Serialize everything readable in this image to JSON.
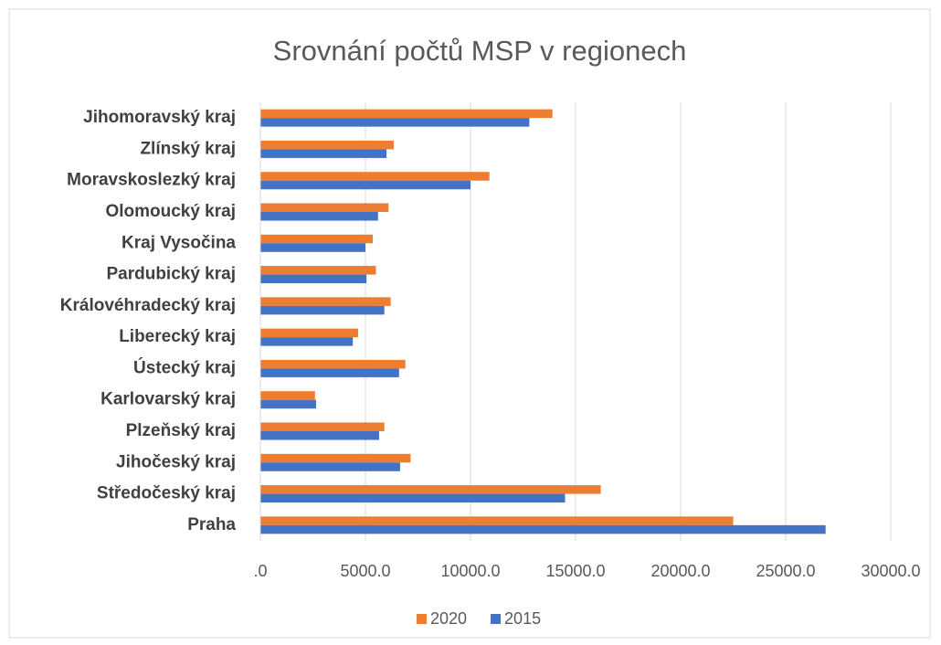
{
  "chart_data": {
    "type": "barh",
    "title": "Srovnání počtů MSP v regionech",
    "categories": [
      "Jihomoravský kraj",
      "Zlínský kraj",
      "Moravskoslezký kraj",
      "Olomoucký kraj",
      "Kraj Vysočina",
      "Pardubický kraj",
      "Královéhradecký kraj",
      "Liberecký kraj",
      "Ústecký kraj",
      "Karlovarský kraj",
      "Plzeňský kraj",
      "Jihočeský kraj",
      "Středočeský kraj",
      "Praha"
    ],
    "series": [
      {
        "name": "2020",
        "color": "#ed7d31",
        "values": [
          13900,
          6350,
          10900,
          6100,
          5350,
          5500,
          6200,
          4650,
          6900,
          2600,
          5900,
          7150,
          16200,
          22500
        ]
      },
      {
        "name": "2015",
        "color": "#4472c4",
        "values": [
          12800,
          6000,
          10000,
          5600,
          5000,
          5050,
          5900,
          4400,
          6600,
          2650,
          5650,
          6650,
          14500,
          26900
        ]
      }
    ],
    "xlim": [
      0,
      30000
    ],
    "xticks": [
      {
        "value": 0,
        "label": ".0"
      },
      {
        "value": 5000,
        "label": "5000.0"
      },
      {
        "value": 10000,
        "label": "10000.0"
      },
      {
        "value": 15000,
        "label": "15000.0"
      },
      {
        "value": 20000,
        "label": "20000.0"
      },
      {
        "value": 25000,
        "label": "25000.0"
      },
      {
        "value": 30000,
        "label": "30000.0"
      }
    ],
    "grid": true,
    "legend": "bottom"
  }
}
